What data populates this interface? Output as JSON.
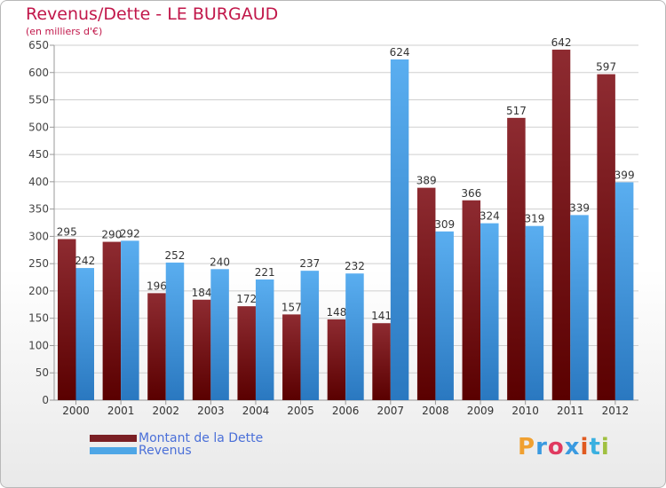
{
  "title": "Revenus/Dette - LE BURGAUD",
  "subtitle": "(en milliers d'€)",
  "brand": {
    "text": "Proxiti",
    "letter_colors": [
      "#f0a030",
      "#3a9ae0",
      "#e03a60",
      "#3a9ae0",
      "#e05a20",
      "#3ab0e0",
      "#a0c040"
    ]
  },
  "chart_data": {
    "type": "bar",
    "categories": [
      "2000",
      "2001",
      "2002",
      "2003",
      "2004",
      "2005",
      "2006",
      "2007",
      "2008",
      "2009",
      "2010",
      "2011",
      "2012"
    ],
    "series": [
      {
        "name": "Montant de la Dette",
        "color": "#7a1f24",
        "values": [
          295,
          290,
          196,
          184,
          172,
          157,
          148,
          141,
          389,
          366,
          517,
          642,
          597
        ]
      },
      {
        "name": "Revenus",
        "color": "#4ea6e6",
        "values": [
          242,
          292,
          252,
          240,
          221,
          237,
          232,
          624,
          309,
          324,
          319,
          339,
          399
        ]
      }
    ],
    "ylim": [
      0,
      650
    ],
    "yticks": [
      0,
      50,
      100,
      150,
      200,
      250,
      300,
      350,
      400,
      450,
      500,
      550,
      600,
      650
    ],
    "grid": true,
    "legend_position": "bottom-left"
  }
}
